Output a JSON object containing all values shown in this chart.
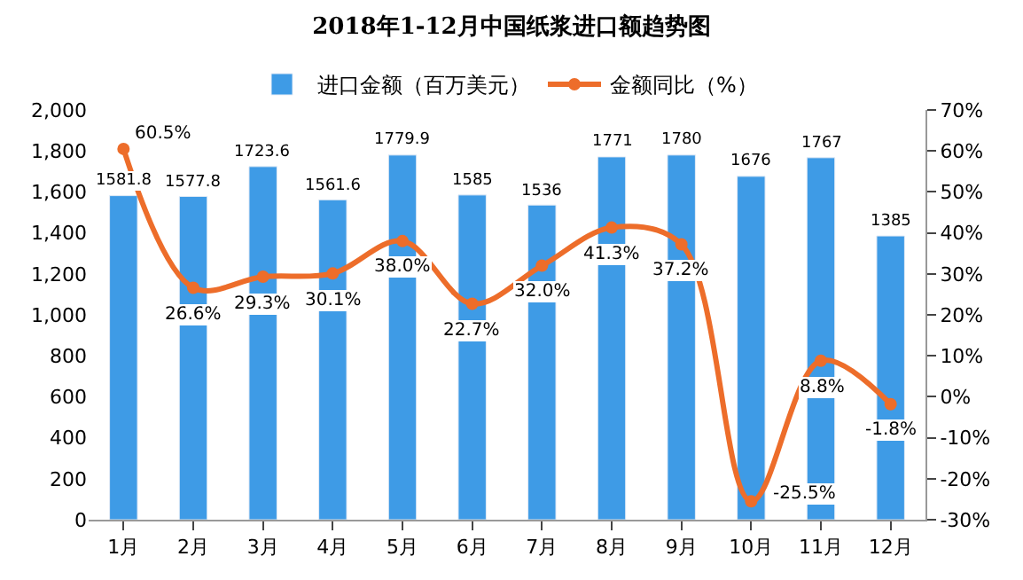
{
  "chart_data": {
    "type": "bar",
    "title": "2018年1-12月中国纸浆进口额趋势图",
    "categories": [
      "1月",
      "2月",
      "3月",
      "4月",
      "5月",
      "6月",
      "7月",
      "8月",
      "9月",
      "10月",
      "11月",
      "12月"
    ],
    "series": [
      {
        "name": "进口金额（百万美元）",
        "color": "#3e9be6",
        "values": [
          1581.8,
          1577.8,
          1723.6,
          1561.6,
          1779.9,
          1585,
          1536,
          1771,
          1780,
          1676,
          1767,
          1385
        ],
        "value_labels": [
          "1581.8",
          "1577.8",
          "1723.6",
          "1561.6",
          "1779.9",
          "1585",
          "1536",
          "1771",
          "1780",
          "1676",
          "1767",
          "1385"
        ]
      },
      {
        "name": "金额同比（%）",
        "type": "line",
        "axis": "y2",
        "color": "#ed6d2a",
        "marker": "circle",
        "values": [
          60.5,
          26.6,
          29.3,
          30.1,
          38.0,
          22.7,
          32.0,
          41.3,
          37.2,
          -25.5,
          8.8,
          -1.8
        ],
        "value_labels": [
          "60.5%",
          "26.6%",
          "29.3%",
          "30.1%",
          "38.0%",
          "22.7%",
          "32.0%",
          "41.3%",
          "37.2%",
          "-25.5%",
          "8.8%",
          "-1.8%"
        ]
      }
    ],
    "ylim": [
      0,
      2000
    ],
    "yticks": [
      0,
      200,
      400,
      600,
      800,
      {
        "value": 1000,
        "label": "1,000"
      },
      {
        "value": 1200,
        "label": "1,200"
      },
      {
        "value": 1400,
        "label": "1,400"
      },
      {
        "value": 1600,
        "label": "1,600"
      },
      {
        "value": 1800,
        "label": "1,800"
      },
      {
        "value": 2000,
        "label": "2,000"
      }
    ],
    "y2lim": [
      -30,
      70
    ],
    "y2ticks": [
      {
        "value": -30,
        "label": "-30%"
      },
      {
        "value": -20,
        "label": "-20%"
      },
      {
        "value": -10,
        "label": "-10%"
      },
      {
        "value": 0,
        "label": "0%"
      },
      {
        "value": 10,
        "label": "10%"
      },
      {
        "value": 20,
        "label": "20%"
      },
      {
        "value": 30,
        "label": "30%"
      },
      {
        "value": 40,
        "label": "40%"
      },
      {
        "value": 50,
        "label": "50%"
      },
      {
        "value": 60,
        "label": "60%"
      },
      {
        "value": 70,
        "label": "70%"
      }
    ],
    "legend": "top"
  }
}
